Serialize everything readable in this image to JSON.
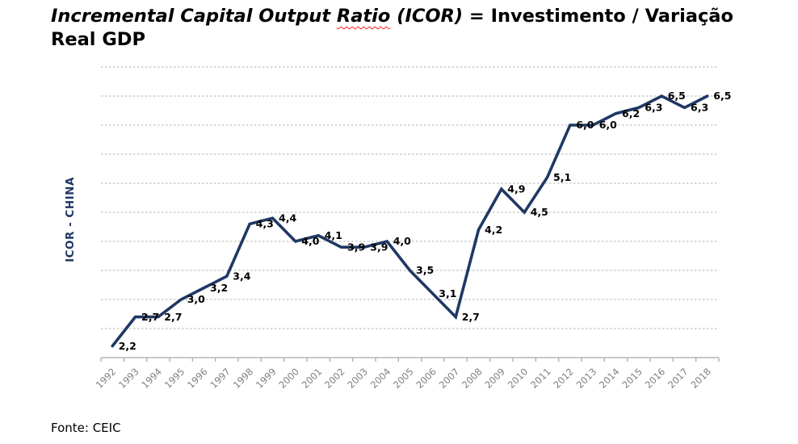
{
  "title": {
    "italic_before": "Incremental Capital Output ",
    "ratio_word": "Ratio",
    "italic_after": " (ICOR)",
    "regular_line1": " = Investimento / Variação",
    "regular_line2": "Real GDP"
  },
  "footer": {
    "source": "Fonte: CEIC"
  },
  "chart_data": {
    "type": "line",
    "title": "Incremental Capital Output Ratio (ICOR) = Investimento / Variação Real GDP",
    "ylabel": "ICOR - CHINA",
    "xlabel": "",
    "categories": [
      "1992",
      "1993",
      "1994",
      "1995",
      "1996",
      "1997",
      "1998",
      "1999",
      "2000",
      "2001",
      "2002",
      "2003",
      "2004",
      "2005",
      "2006",
      "2007",
      "2008",
      "2009",
      "2010",
      "2011",
      "2012",
      "2013",
      "2014",
      "2015",
      "2016",
      "2017",
      "2018"
    ],
    "values": [
      2.2,
      2.7,
      2.7,
      3.0,
      3.2,
      3.4,
      4.3,
      4.4,
      4.0,
      4.1,
      3.9,
      3.9,
      4.0,
      3.5,
      3.1,
      2.7,
      4.2,
      4.9,
      4.5,
      5.1,
      6.0,
      6.0,
      6.2,
      6.3,
      6.5,
      6.3,
      6.5
    ],
    "data_labels": [
      "2,2",
      "2,7",
      "2,7",
      "3,0",
      "3,2",
      "3,4",
      "4,3",
      "4,4",
      "4,0",
      "4,1",
      "3,9",
      "3,9",
      "4,0",
      "3,5",
      "3,1",
      "2,7",
      "4,2",
      "4,9",
      "4,5",
      "5,1",
      "6,0",
      "6,0",
      "6,2",
      "6,3",
      "6,5",
      "6,3",
      "6,5"
    ],
    "ylim": [
      2.0,
      7.0
    ],
    "grid_step": 0.5,
    "grid": true,
    "legend_position": "none",
    "colors": {
      "line": "#1f3864",
      "grid": "#b3b3b3",
      "axis": "#a6a6a6",
      "x_tick_label": "#7f7f7f",
      "data_label": "#000000",
      "y_axis_title": "#1f3864",
      "squiggle": "#ff1a1a"
    }
  }
}
